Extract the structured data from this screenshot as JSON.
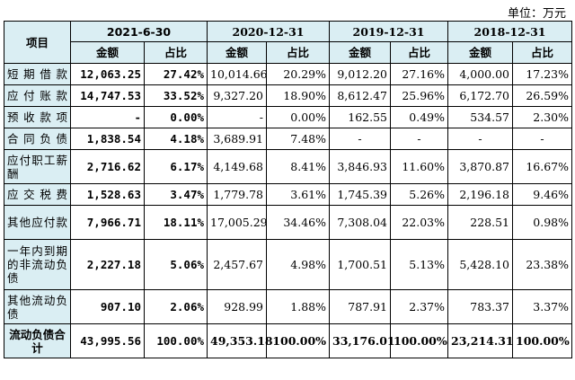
{
  "unit_note": "单位：万元",
  "header": {
    "item": "项目",
    "periods": [
      "2021-6-30",
      "2020-12-31",
      "2019-12-31",
      "2018-12-31"
    ],
    "amount_label": "金额",
    "ratio_label": "占比"
  },
  "rows": [
    {
      "label": "短期借款",
      "a0": "12,063.25",
      "r0": "27.42%",
      "a1": "10,014.66",
      "r1": "20.29%",
      "a2": "9,012.20",
      "r2": "27.16%",
      "a3": "4,000.00",
      "r3": "17.23%"
    },
    {
      "label": "应付账款",
      "a0": "14,747.53",
      "r0": "33.52%",
      "a1": "9,327.20",
      "r1": "18.90%",
      "a2": "8,612.47",
      "r2": "25.96%",
      "a3": "6,172.70",
      "r3": "26.59%"
    },
    {
      "label": "预收款项",
      "a0": "-",
      "r0": "0.00%",
      "a1": "-",
      "r1": "0.00%",
      "a2": "162.55",
      "r2": "0.49%",
      "a3": "534.57",
      "r3": "2.30%"
    },
    {
      "label": "合同负债",
      "a0": "1,838.54",
      "r0": "4.18%",
      "a1": "3,689.91",
      "r1": "7.48%",
      "a2": "-",
      "r2": "-",
      "a3": "-",
      "r3": "-"
    },
    {
      "label": "应付职工薪酬",
      "a0": "2,716.62",
      "r0": "6.17%",
      "a1": "4,149.68",
      "r1": "8.41%",
      "a2": "3,846.93",
      "r2": "11.60%",
      "a3": "3,870.87",
      "r3": "16.67%"
    },
    {
      "label": "应交税费",
      "a0": "1,528.63",
      "r0": "3.47%",
      "a1": "1,779.78",
      "r1": "3.61%",
      "a2": "1,745.39",
      "r2": "5.26%",
      "a3": "2,196.18",
      "r3": "9.46%"
    },
    {
      "label": "其他应付款",
      "a0": "7,966.71",
      "r0": "18.11%",
      "a1": "17,005.29",
      "r1": "34.46%",
      "a2": "7,308.04",
      "r2": "22.03%",
      "a3": "228.51",
      "r3": "0.98%"
    },
    {
      "label": "一年内到期的非流动负债",
      "a0": "2,227.18",
      "r0": "5.06%",
      "a1": "2,457.67",
      "r1": "4.98%",
      "a2": "1,700.51",
      "r2": "5.13%",
      "a3": "5,428.10",
      "r3": "23.38%"
    },
    {
      "label": "其他流动负债",
      "a0": "907.10",
      "r0": "2.06%",
      "a1": "928.99",
      "r1": "1.88%",
      "a2": "787.91",
      "r2": "2.37%",
      "a3": "783.37",
      "r3": "3.37%"
    }
  ],
  "total": {
    "label": "流动负债合计",
    "a0": "43,995.56",
    "r0": "100.00%",
    "a1": "49,353.18",
    "r1": "100.00%",
    "a2": "33,176.01",
    "r2": "100.00%",
    "a3": "23,214.31",
    "r3": "100.00%"
  }
}
